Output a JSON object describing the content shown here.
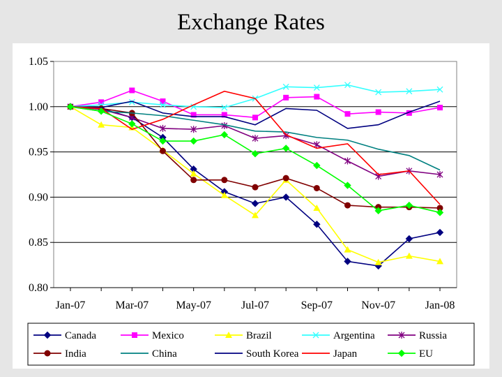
{
  "slide": {
    "title": "Exchange Rates"
  },
  "chart_data": {
    "type": "line",
    "title": "Exchange Rates",
    "xlabel": "",
    "ylabel": "",
    "ylim": [
      0.8,
      1.05
    ],
    "yticks": [
      0.8,
      0.85,
      0.9,
      0.95,
      1.0,
      1.05
    ],
    "ytick_labels": [
      "0.80",
      "0.85",
      "0.90",
      "0.95",
      "1.00",
      "1.05"
    ],
    "xticks": [
      0,
      2,
      4,
      6,
      8,
      10,
      12
    ],
    "xtick_labels": [
      "Jan-07",
      "Mar-07",
      "May-07",
      "Jul-07",
      "Sep-07",
      "Nov-07",
      "Jan-08"
    ],
    "grid": "horizontal lines at each y tick",
    "legend_position": "bottom",
    "categories": [
      "Jan-07",
      "Feb-07",
      "Mar-07",
      "Apr-07",
      "May-07",
      "Jun-07",
      "Jul-07",
      "Aug-07",
      "Sep-07",
      "Oct-07",
      "Nov-07",
      "Dec-07",
      "Jan-08"
    ],
    "series": [
      {
        "name": "Canada",
        "color": "#000080",
        "marker": "diamond",
        "values": [
          1.0,
          0.998,
          0.988,
          0.966,
          0.931,
          0.906,
          0.893,
          0.9,
          0.87,
          0.829,
          0.824,
          0.854,
          0.861
        ]
      },
      {
        "name": "Mexico",
        "color": "#ff00ff",
        "marker": "square",
        "values": [
          1.0,
          1.005,
          1.018,
          1.006,
          0.991,
          0.991,
          0.988,
          1.01,
          1.011,
          0.992,
          0.994,
          0.993,
          0.999
        ]
      },
      {
        "name": "Brazil",
        "color": "#ffff00",
        "marker": "triangle",
        "values": [
          1.0,
          0.98,
          0.977,
          0.952,
          0.926,
          0.902,
          0.88,
          0.919,
          0.888,
          0.842,
          0.828,
          0.835,
          0.829
        ]
      },
      {
        "name": "Argentina",
        "color": "#33ffff",
        "marker": "x",
        "values": [
          1.0,
          1.002,
          1.005,
          1.002,
          1.0,
          0.999,
          1.009,
          1.022,
          1.021,
          1.024,
          1.016,
          1.017,
          1.019
        ]
      },
      {
        "name": "Russia",
        "color": "#800080",
        "marker": "star",
        "values": [
          1.0,
          0.997,
          0.988,
          0.976,
          0.975,
          0.979,
          0.965,
          0.968,
          0.958,
          0.94,
          0.923,
          0.929,
          0.925
        ]
      },
      {
        "name": "India",
        "color": "#800000",
        "marker": "circle",
        "values": [
          1.0,
          0.998,
          0.993,
          0.951,
          0.919,
          0.919,
          0.911,
          0.921,
          0.91,
          0.891,
          0.889,
          0.889,
          0.888
        ]
      },
      {
        "name": "China",
        "color": "#008080",
        "marker": "none",
        "values": [
          1.0,
          0.995,
          0.993,
          0.99,
          0.985,
          0.98,
          0.973,
          0.972,
          0.966,
          0.963,
          0.953,
          0.946,
          0.93
        ]
      },
      {
        "name": "South Korea",
        "color": "#000080",
        "marker": "none",
        "values": [
          1.0,
          0.999,
          1.006,
          0.993,
          0.989,
          0.989,
          0.98,
          0.998,
          0.996,
          0.976,
          0.98,
          0.994,
          1.006
        ]
      },
      {
        "name": "Japan",
        "color": "#ff0000",
        "marker": "none",
        "values": [
          1.0,
          0.998,
          0.975,
          0.986,
          1.002,
          1.017,
          1.009,
          0.969,
          0.954,
          0.959,
          0.925,
          0.929,
          0.892
        ]
      },
      {
        "name": "EU",
        "color": "#00ff00",
        "marker": "diamond",
        "values": [
          1.0,
          0.995,
          0.981,
          0.962,
          0.962,
          0.969,
          0.948,
          0.954,
          0.935,
          0.913,
          0.885,
          0.891,
          0.883
        ]
      }
    ]
  }
}
